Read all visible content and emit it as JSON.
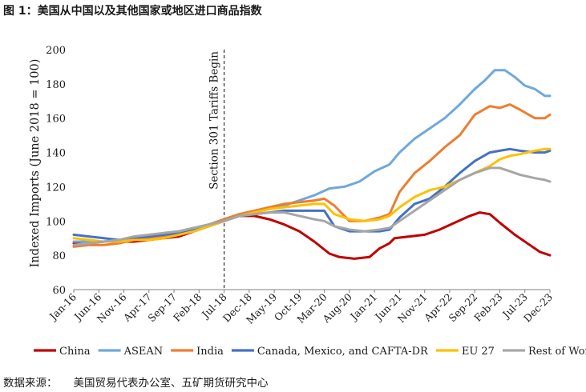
{
  "figure": {
    "title": "图 1：美国从中国以及其他国家或地区进口商品指数",
    "source_label": "数据来源：",
    "source_text": "美国贸易代表办公室、五矿期货研究中心"
  },
  "chart_data": {
    "type": "line",
    "title": "",
    "xlabel": "",
    "ylabel": "Indexed Imports (June 2018 = 100)",
    "ylim": [
      60,
      200
    ],
    "yticks": [
      60,
      80,
      100,
      120,
      140,
      160,
      180,
      200
    ],
    "grid": false,
    "legend_position": "bottom",
    "x_start": "2016-01",
    "x_end": "2023-12",
    "x_tick_labels": [
      {
        "month": "2016-01",
        "label": "Jan-16"
      },
      {
        "month": "2016-06",
        "label": "Jun-16"
      },
      {
        "month": "2016-11",
        "label": "Nov-16"
      },
      {
        "month": "2017-04",
        "label": "Apr-17"
      },
      {
        "month": "2017-09",
        "label": "Sep-17"
      },
      {
        "month": "2018-02",
        "label": "Feb-18"
      },
      {
        "month": "2018-07",
        "label": "Jul-18"
      },
      {
        "month": "2018-12",
        "label": "Dec-18"
      },
      {
        "month": "2019-05",
        "label": "May-19"
      },
      {
        "month": "2019-10",
        "label": "Oct-19"
      },
      {
        "month": "2020-03",
        "label": "Mar-20"
      },
      {
        "month": "2020-08",
        "label": "Aug-20"
      },
      {
        "month": "2021-01",
        "label": "Jan-21"
      },
      {
        "month": "2021-06",
        "label": "Jun-21"
      },
      {
        "month": "2021-11",
        "label": "Nov-21"
      },
      {
        "month": "2022-04",
        "label": "Apr-22"
      },
      {
        "month": "2022-09",
        "label": "Sep-22"
      },
      {
        "month": "2023-02",
        "label": "Feb-23"
      },
      {
        "month": "2023-07",
        "label": "Jul-23"
      },
      {
        "month": "2023-12",
        "label": "Dec-23"
      }
    ],
    "annotation": {
      "month": "2018-07",
      "label": "Section 301 Tariffs Begin",
      "style": "dashed-vertical"
    },
    "series": [
      {
        "name": "China",
        "color": "#c00000",
        "points": [
          [
            "2016-01",
            87
          ],
          [
            "2016-04",
            87
          ],
          [
            "2016-07",
            88
          ],
          [
            "2016-10",
            88
          ],
          [
            "2017-01",
            88
          ],
          [
            "2017-04",
            89
          ],
          [
            "2017-07",
            90
          ],
          [
            "2017-10",
            91
          ],
          [
            "2018-01",
            94
          ],
          [
            "2018-04",
            97
          ],
          [
            "2018-07",
            100
          ],
          [
            "2018-10",
            103
          ],
          [
            "2019-01",
            103
          ],
          [
            "2019-04",
            101
          ],
          [
            "2019-07",
            98
          ],
          [
            "2019-10",
            94
          ],
          [
            "2020-01",
            88
          ],
          [
            "2020-04",
            81
          ],
          [
            "2020-06",
            79
          ],
          [
            "2020-09",
            78
          ],
          [
            "2020-12",
            79
          ],
          [
            "2021-02",
            84
          ],
          [
            "2021-04",
            87
          ],
          [
            "2021-05",
            90
          ],
          [
            "2021-08",
            91
          ],
          [
            "2021-11",
            92
          ],
          [
            "2022-02",
            95
          ],
          [
            "2022-05",
            99
          ],
          [
            "2022-08",
            103
          ],
          [
            "2022-10",
            105
          ],
          [
            "2022-12",
            104
          ],
          [
            "2023-02",
            99
          ],
          [
            "2023-05",
            92
          ],
          [
            "2023-08",
            86
          ],
          [
            "2023-10",
            82
          ],
          [
            "2023-12",
            80
          ]
        ]
      },
      {
        "name": "ASEAN",
        "color": "#6fa8dc",
        "points": [
          [
            "2016-01",
            88
          ],
          [
            "2016-04",
            88
          ],
          [
            "2016-07",
            88
          ],
          [
            "2016-10",
            89
          ],
          [
            "2017-01",
            90
          ],
          [
            "2017-04",
            91
          ],
          [
            "2017-07",
            93
          ],
          [
            "2017-10",
            94
          ],
          [
            "2018-01",
            96
          ],
          [
            "2018-04",
            98
          ],
          [
            "2018-07",
            100
          ],
          [
            "2018-10",
            103
          ],
          [
            "2019-01",
            105
          ],
          [
            "2019-04",
            107
          ],
          [
            "2019-07",
            109
          ],
          [
            "2019-10",
            112
          ],
          [
            "2020-01",
            115
          ],
          [
            "2020-04",
            119
          ],
          [
            "2020-07",
            120
          ],
          [
            "2020-10",
            123
          ],
          [
            "2021-01",
            129
          ],
          [
            "2021-04",
            133
          ],
          [
            "2021-06",
            140
          ],
          [
            "2021-09",
            148
          ],
          [
            "2021-12",
            154
          ],
          [
            "2022-03",
            160
          ],
          [
            "2022-06",
            168
          ],
          [
            "2022-09",
            177
          ],
          [
            "2022-11",
            182
          ],
          [
            "2023-01",
            188
          ],
          [
            "2023-03",
            188
          ],
          [
            "2023-05",
            184
          ],
          [
            "2023-07",
            179
          ],
          [
            "2023-09",
            177
          ],
          [
            "2023-11",
            173
          ],
          [
            "2023-12",
            173
          ]
        ]
      },
      {
        "name": "India",
        "color": "#ed7d31",
        "points": [
          [
            "2016-01",
            85
          ],
          [
            "2016-04",
            86
          ],
          [
            "2016-07",
            86
          ],
          [
            "2016-10",
            87
          ],
          [
            "2017-01",
            89
          ],
          [
            "2017-04",
            90
          ],
          [
            "2017-07",
            91
          ],
          [
            "2017-10",
            93
          ],
          [
            "2018-01",
            95
          ],
          [
            "2018-04",
            98
          ],
          [
            "2018-07",
            101
          ],
          [
            "2018-10",
            104
          ],
          [
            "2019-01",
            106
          ],
          [
            "2019-04",
            108
          ],
          [
            "2019-07",
            110
          ],
          [
            "2019-10",
            111
          ],
          [
            "2020-01",
            112
          ],
          [
            "2020-03",
            113
          ],
          [
            "2020-05",
            109
          ],
          [
            "2020-08",
            100
          ],
          [
            "2020-11",
            100
          ],
          [
            "2021-02",
            102
          ],
          [
            "2021-04",
            104
          ],
          [
            "2021-06",
            117
          ],
          [
            "2021-09",
            128
          ],
          [
            "2021-12",
            135
          ],
          [
            "2022-03",
            143
          ],
          [
            "2022-06",
            150
          ],
          [
            "2022-09",
            162
          ],
          [
            "2022-12",
            167
          ],
          [
            "2023-02",
            166
          ],
          [
            "2023-04",
            168
          ],
          [
            "2023-06",
            165
          ],
          [
            "2023-09",
            160
          ],
          [
            "2023-11",
            160
          ],
          [
            "2023-12",
            162
          ]
        ]
      },
      {
        "name": "Canada, Mexico, and CAFTA-DR",
        "color": "#4472c4",
        "points": [
          [
            "2016-01",
            92
          ],
          [
            "2016-04",
            91
          ],
          [
            "2016-07",
            90
          ],
          [
            "2016-10",
            89
          ],
          [
            "2017-01",
            90
          ],
          [
            "2017-04",
            91
          ],
          [
            "2017-07",
            92
          ],
          [
            "2017-10",
            93
          ],
          [
            "2018-01",
            95
          ],
          [
            "2018-04",
            98
          ],
          [
            "2018-07",
            100
          ],
          [
            "2018-10",
            103
          ],
          [
            "2019-01",
            104
          ],
          [
            "2019-04",
            105
          ],
          [
            "2019-07",
            106
          ],
          [
            "2019-10",
            106
          ],
          [
            "2020-01",
            106
          ],
          [
            "2020-03",
            106
          ],
          [
            "2020-05",
            97
          ],
          [
            "2020-08",
            94
          ],
          [
            "2020-11",
            94
          ],
          [
            "2021-02",
            94
          ],
          [
            "2021-04",
            95
          ],
          [
            "2021-06",
            102
          ],
          [
            "2021-09",
            110
          ],
          [
            "2021-12",
            113
          ],
          [
            "2022-03",
            120
          ],
          [
            "2022-06",
            128
          ],
          [
            "2022-09",
            135
          ],
          [
            "2022-12",
            140
          ],
          [
            "2023-02",
            141
          ],
          [
            "2023-04",
            142
          ],
          [
            "2023-06",
            141
          ],
          [
            "2023-09",
            140
          ],
          [
            "2023-11",
            140
          ],
          [
            "2023-12",
            141
          ]
        ]
      },
      {
        "name": "EU 27",
        "color": "#ffc000",
        "points": [
          [
            "2016-01",
            90
          ],
          [
            "2016-04",
            89
          ],
          [
            "2016-07",
            88
          ],
          [
            "2016-10",
            88
          ],
          [
            "2017-01",
            89
          ],
          [
            "2017-04",
            89
          ],
          [
            "2017-07",
            90
          ],
          [
            "2017-10",
            92
          ],
          [
            "2018-01",
            94
          ],
          [
            "2018-04",
            97
          ],
          [
            "2018-07",
            100
          ],
          [
            "2018-10",
            103
          ],
          [
            "2019-01",
            105
          ],
          [
            "2019-04",
            107
          ],
          [
            "2019-07",
            108
          ],
          [
            "2019-10",
            109
          ],
          [
            "2020-01",
            110
          ],
          [
            "2020-03",
            110
          ],
          [
            "2020-05",
            104
          ],
          [
            "2020-08",
            101
          ],
          [
            "2020-11",
            100
          ],
          [
            "2021-02",
            101
          ],
          [
            "2021-04",
            103
          ],
          [
            "2021-06",
            108
          ],
          [
            "2021-09",
            114
          ],
          [
            "2021-12",
            118
          ],
          [
            "2022-03",
            120
          ],
          [
            "2022-06",
            124
          ],
          [
            "2022-09",
            128
          ],
          [
            "2022-12",
            132
          ],
          [
            "2023-02",
            136
          ],
          [
            "2023-04",
            138
          ],
          [
            "2023-06",
            139
          ],
          [
            "2023-09",
            141
          ],
          [
            "2023-11",
            142
          ],
          [
            "2023-12",
            142
          ]
        ]
      },
      {
        "name": "Rest of World",
        "color": "#a6a6a6",
        "points": [
          [
            "2016-01",
            86
          ],
          [
            "2016-04",
            87
          ],
          [
            "2016-07",
            88
          ],
          [
            "2016-10",
            89
          ],
          [
            "2017-01",
            91
          ],
          [
            "2017-04",
            92
          ],
          [
            "2017-07",
            93
          ],
          [
            "2017-10",
            94
          ],
          [
            "2018-01",
            96
          ],
          [
            "2018-04",
            98
          ],
          [
            "2018-07",
            100
          ],
          [
            "2018-10",
            103
          ],
          [
            "2019-01",
            104
          ],
          [
            "2019-04",
            105
          ],
          [
            "2019-07",
            105
          ],
          [
            "2019-10",
            103
          ],
          [
            "2020-01",
            101
          ],
          [
            "2020-03",
            100
          ],
          [
            "2020-05",
            97
          ],
          [
            "2020-08",
            95
          ],
          [
            "2020-11",
            94
          ],
          [
            "2021-02",
            95
          ],
          [
            "2021-04",
            96
          ],
          [
            "2021-06",
            100
          ],
          [
            "2021-09",
            106
          ],
          [
            "2021-12",
            112
          ],
          [
            "2022-03",
            118
          ],
          [
            "2022-06",
            124
          ],
          [
            "2022-09",
            128
          ],
          [
            "2022-12",
            131
          ],
          [
            "2023-02",
            131
          ],
          [
            "2023-04",
            129
          ],
          [
            "2023-06",
            127
          ],
          [
            "2023-09",
            125
          ],
          [
            "2023-11",
            124
          ],
          [
            "2023-12",
            123
          ]
        ]
      }
    ]
  }
}
